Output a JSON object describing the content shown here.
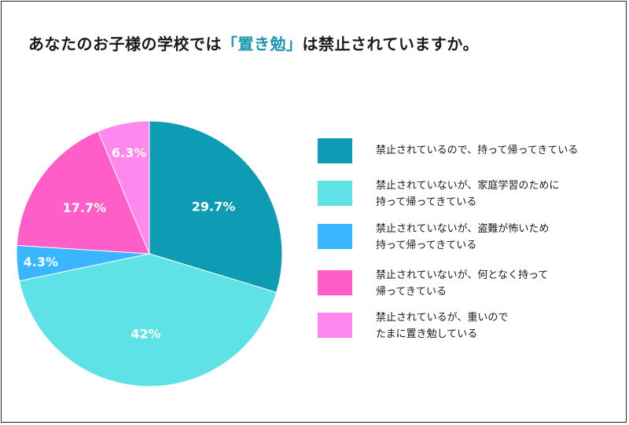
{
  "title": {
    "prefix": "あなたのお子様の学校では",
    "highlight": "「置き勉」",
    "suffix": "は禁止されていますか。"
  },
  "colors": {
    "highlight": "#1a96b0"
  },
  "chart_data": {
    "type": "pie",
    "start": "top, clockwise",
    "slices": [
      {
        "label": "禁止されているので、持って帰ってきている",
        "value": 29.7,
        "value_label": "29.7%",
        "color": "#0e9bb4"
      },
      {
        "label": "禁止されていないが、家庭学習のために\n持って帰ってきている",
        "value": 42,
        "value_label": "42%",
        "color": "#5ee2e6"
      },
      {
        "label": "禁止されていないが、盗難が怖いため\n持って帰ってきている",
        "value": 4.3,
        "value_label": "4.3%",
        "color": "#3ab6ff"
      },
      {
        "label": "禁止されていないが、何となく持って\n帰ってきている",
        "value": 17.7,
        "value_label": "17.7%",
        "color": "#ff5ec8"
      },
      {
        "label": "禁止されているが、重いので\nたまに置き勉している",
        "value": 6.3,
        "value_label": "6.3%",
        "color": "#ff88ee"
      }
    ],
    "legend_position": "right"
  }
}
